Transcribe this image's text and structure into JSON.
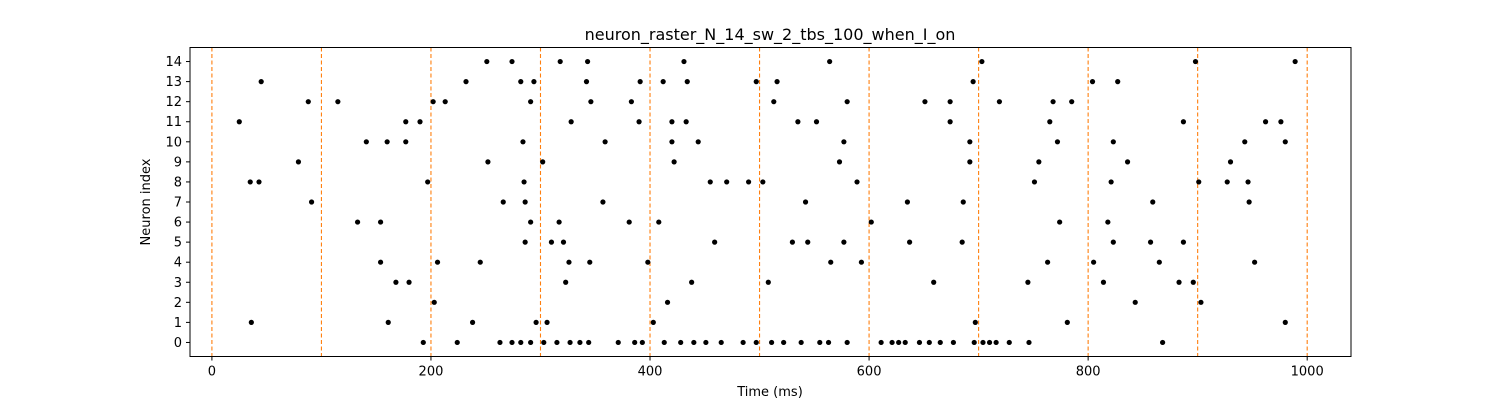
{
  "chart_data": {
    "type": "scatter",
    "title": "neuron_raster_N_14_sw_2_tbs_100_when_I_on",
    "xlabel": "Time (ms)",
    "ylabel": "Neuron index",
    "xlim": [
      -20,
      1040
    ],
    "ylim": [
      -0.7,
      14.7
    ],
    "xticks": [
      0,
      200,
      400,
      600,
      800,
      1000
    ],
    "yticks": [
      0,
      1,
      2,
      3,
      4,
      5,
      6,
      7,
      8,
      9,
      10,
      11,
      12,
      13,
      14
    ],
    "grid": false,
    "marker_color": "#000000",
    "vline_color": "#ff7f0e",
    "vlines": [
      0,
      100,
      200,
      300,
      400,
      500,
      600,
      700,
      800,
      900,
      1000
    ],
    "points": [
      [
        25,
        11
      ],
      [
        35,
        8
      ],
      [
        43,
        8
      ],
      [
        45,
        13
      ],
      [
        36,
        1
      ],
      [
        79,
        9
      ],
      [
        88,
        12
      ],
      [
        91,
        7
      ],
      [
        115,
        12
      ],
      [
        133,
        6
      ],
      [
        141,
        10
      ],
      [
        154,
        6
      ],
      [
        154,
        4
      ],
      [
        160,
        10
      ],
      [
        161,
        1
      ],
      [
        168,
        3
      ],
      [
        177,
        10
      ],
      [
        177,
        11
      ],
      [
        180,
        3
      ],
      [
        190,
        11
      ],
      [
        193,
        0
      ],
      [
        197,
        8
      ],
      [
        202,
        12
      ],
      [
        203,
        2
      ],
      [
        206,
        4
      ],
      [
        213,
        12
      ],
      [
        224,
        0
      ],
      [
        232,
        13
      ],
      [
        238,
        1
      ],
      [
        245,
        4
      ],
      [
        252,
        9
      ],
      [
        251,
        14
      ],
      [
        263,
        0
      ],
      [
        266,
        7
      ],
      [
        274,
        14
      ],
      [
        274,
        0
      ],
      [
        282,
        0
      ],
      [
        282,
        13
      ],
      [
        284,
        10
      ],
      [
        285,
        8
      ],
      [
        286,
        5
      ],
      [
        286,
        7
      ],
      [
        291,
        0
      ],
      [
        291,
        6
      ],
      [
        291,
        12
      ],
      [
        294,
        13
      ],
      [
        296,
        1
      ],
      [
        302,
        9
      ],
      [
        303,
        0
      ],
      [
        306,
        1
      ],
      [
        310,
        5
      ],
      [
        315,
        0
      ],
      [
        317,
        6
      ],
      [
        318,
        14
      ],
      [
        321,
        5
      ],
      [
        323,
        3
      ],
      [
        326,
        4
      ],
      [
        327,
        0
      ],
      [
        328,
        11
      ],
      [
        336,
        0
      ],
      [
        342,
        13
      ],
      [
        343,
        14
      ],
      [
        344,
        0
      ],
      [
        345,
        4
      ],
      [
        346,
        12
      ],
      [
        357,
        7
      ],
      [
        359,
        10
      ],
      [
        371,
        0
      ],
      [
        381,
        6
      ],
      [
        383,
        12
      ],
      [
        386,
        0
      ],
      [
        390,
        11
      ],
      [
        391,
        13
      ],
      [
        393,
        0
      ],
      [
        398,
        4
      ],
      [
        403,
        1
      ],
      [
        408,
        6
      ],
      [
        412,
        13
      ],
      [
        413,
        0
      ],
      [
        416,
        2
      ],
      [
        420,
        11
      ],
      [
        420,
        10
      ],
      [
        422,
        9
      ],
      [
        428,
        0
      ],
      [
        431,
        14
      ],
      [
        433,
        11
      ],
      [
        434,
        13
      ],
      [
        438,
        3
      ],
      [
        440,
        0
      ],
      [
        444,
        10
      ],
      [
        451,
        0
      ],
      [
        455,
        8
      ],
      [
        459,
        5
      ],
      [
        465,
        0
      ],
      [
        470,
        8
      ],
      [
        485,
        0
      ],
      [
        490,
        8
      ],
      [
        497,
        0
      ],
      [
        497,
        13
      ],
      [
        503,
        8
      ],
      [
        508,
        3
      ],
      [
        511,
        0
      ],
      [
        513,
        12
      ],
      [
        516,
        13
      ],
      [
        522,
        0
      ],
      [
        530,
        5
      ],
      [
        535,
        11
      ],
      [
        538,
        0
      ],
      [
        542,
        7
      ],
      [
        544,
        5
      ],
      [
        552,
        11
      ],
      [
        555,
        0
      ],
      [
        563,
        0
      ],
      [
        564,
        14
      ],
      [
        565,
        4
      ],
      [
        573,
        9
      ],
      [
        577,
        10
      ],
      [
        577,
        5
      ],
      [
        580,
        12
      ],
      [
        580,
        0
      ],
      [
        589,
        8
      ],
      [
        593,
        4
      ],
      [
        602,
        6
      ],
      [
        611,
        0
      ],
      [
        621,
        0
      ],
      [
        627,
        0
      ],
      [
        633,
        0
      ],
      [
        635,
        7
      ],
      [
        637,
        5
      ],
      [
        646,
        0
      ],
      [
        651,
        12
      ],
      [
        655,
        0
      ],
      [
        659,
        3
      ],
      [
        665,
        0
      ],
      [
        674,
        11
      ],
      [
        674,
        12
      ],
      [
        677,
        0
      ],
      [
        685,
        5
      ],
      [
        686,
        7
      ],
      [
        692,
        10
      ],
      [
        692,
        9
      ],
      [
        695,
        13
      ],
      [
        696,
        0
      ],
      [
        697,
        1
      ],
      [
        703,
        14
      ],
      [
        704,
        0
      ],
      [
        710,
        0
      ],
      [
        716,
        0
      ],
      [
        719,
        12
      ],
      [
        728,
        0
      ],
      [
        745,
        3
      ],
      [
        746,
        0
      ],
      [
        751,
        8
      ],
      [
        755,
        9
      ],
      [
        763,
        4
      ],
      [
        765,
        11
      ],
      [
        768,
        12
      ],
      [
        772,
        10
      ],
      [
        774,
        6
      ],
      [
        781,
        1
      ],
      [
        785,
        12
      ],
      [
        804,
        13
      ],
      [
        805,
        4
      ],
      [
        814,
        3
      ],
      [
        818,
        6
      ],
      [
        821,
        8
      ],
      [
        823,
        10
      ],
      [
        823,
        5
      ],
      [
        827,
        13
      ],
      [
        836,
        9
      ],
      [
        843,
        2
      ],
      [
        857,
        5
      ],
      [
        859,
        7
      ],
      [
        865,
        4
      ],
      [
        868,
        0
      ],
      [
        883,
        3
      ],
      [
        887,
        5
      ],
      [
        887,
        11
      ],
      [
        896,
        3
      ],
      [
        898,
        14
      ],
      [
        901,
        8
      ],
      [
        903,
        2
      ],
      [
        927,
        8
      ],
      [
        930,
        9
      ],
      [
        943,
        10
      ],
      [
        946,
        8
      ],
      [
        947,
        7
      ],
      [
        952,
        4
      ],
      [
        962,
        11
      ],
      [
        976,
        11
      ],
      [
        980,
        10
      ],
      [
        980,
        1
      ],
      [
        989,
        14
      ]
    ]
  }
}
